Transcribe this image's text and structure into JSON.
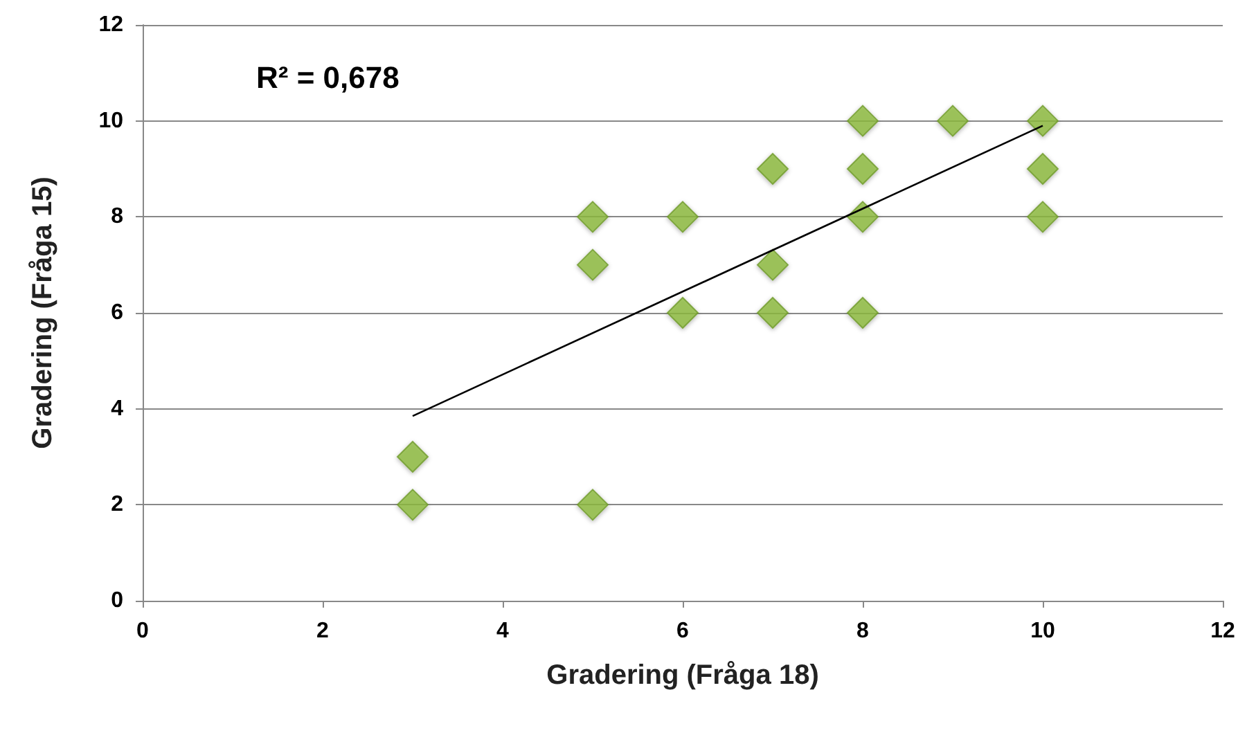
{
  "chart_data": {
    "type": "scatter",
    "xlabel": "Gradering (Fråga 18)",
    "ylabel": "Gradering (Fråga 15)",
    "annotations": [
      "R² = 0,678"
    ],
    "series": [
      {
        "color": "#8dbb3f",
        "x": [
          3,
          3,
          5,
          5,
          5,
          6,
          6,
          7,
          7,
          7,
          8,
          8,
          8,
          8,
          9,
          10,
          10,
          10
        ],
        "values": [
          3,
          2,
          2,
          8,
          7,
          8,
          6,
          9,
          7,
          6,
          10,
          9,
          8,
          6,
          10,
          10,
          9,
          8
        ]
      },
      {
        "type": "line",
        "color": "#000000",
        "marker": "none",
        "x": [
          3,
          10
        ],
        "values": [
          3.85,
          9.9
        ]
      }
    ],
    "xlim": [
      0,
      12
    ],
    "xticks": [
      0,
      2,
      4,
      6,
      8,
      10,
      12
    ],
    "ylim": [
      0,
      12
    ],
    "yticks": [
      0,
      2,
      4,
      6,
      8,
      10,
      12
    ],
    "grid": "y",
    "marker": "diamond"
  }
}
